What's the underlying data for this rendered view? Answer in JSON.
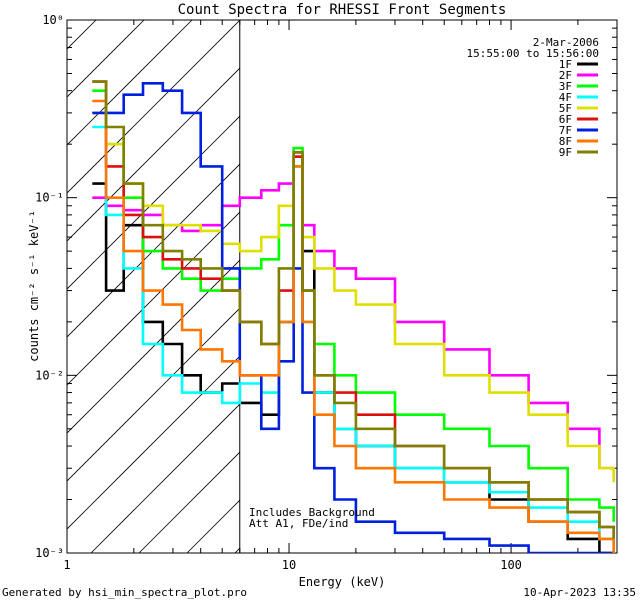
{
  "chart_data": {
    "type": "line",
    "title": "Count Spectra for RHESSI Front Segments",
    "xlabel": "Energy (keV)",
    "ylabel": "counts cm⁻² s⁻¹ keV⁻¹",
    "xscale": "log",
    "yscale": "log",
    "xlim": [
      1,
      300
    ],
    "ylim": [
      0.001,
      1
    ],
    "x_ticks": [
      {
        "value": 1,
        "label": "1"
      },
      {
        "value": 10,
        "label": "10"
      },
      {
        "value": 100,
        "label": "100"
      }
    ],
    "y_ticks": [
      {
        "value": 1,
        "label": "10⁰"
      },
      {
        "value": 0.1,
        "label": "10⁻¹"
      },
      {
        "value": 0.01,
        "label": "10⁻²"
      },
      {
        "value": 0.001,
        "label": "10⁻³"
      }
    ],
    "hatched_region_keV": [
      1,
      6
    ],
    "date": "2-Mar-2006",
    "time_range": "15:55:00 to 15:56:00",
    "annotations": [
      "Includes Background",
      "Att A1, FDe/ind"
    ],
    "series": [
      {
        "name": "1F",
        "color": "#000000",
        "x": [
          1.3,
          1.5,
          1.8,
          2.2,
          2.7,
          3.3,
          4.0,
          5.0,
          6.0,
          7.5,
          9.0,
          10.5,
          11.5,
          13,
          16,
          20,
          30,
          50,
          80,
          120,
          180,
          250,
          290
        ],
        "y": [
          0.12,
          0.03,
          0.07,
          0.02,
          0.015,
          0.01,
          0.008,
          0.009,
          0.007,
          0.006,
          0.02,
          0.18,
          0.05,
          0.008,
          0.005,
          0.004,
          0.003,
          0.0025,
          0.002,
          0.0015,
          0.0012,
          0.001,
          0.001
        ]
      },
      {
        "name": "2F",
        "color": "#ff00ff",
        "x": [
          1.3,
          1.5,
          1.8,
          2.2,
          2.7,
          3.3,
          4.0,
          5.0,
          6.0,
          7.5,
          9.0,
          10.5,
          11.5,
          13,
          16,
          20,
          30,
          50,
          80,
          120,
          180,
          250,
          290
        ],
        "y": [
          0.1,
          0.09,
          0.085,
          0.08,
          0.07,
          0.065,
          0.07,
          0.09,
          0.1,
          0.11,
          0.12,
          0.17,
          0.07,
          0.05,
          0.04,
          0.035,
          0.02,
          0.014,
          0.01,
          0.007,
          0.005,
          0.003,
          0.0028
        ]
      },
      {
        "name": "3F",
        "color": "#00ff00",
        "x": [
          1.3,
          1.5,
          1.8,
          2.2,
          2.7,
          3.3,
          4.0,
          5.0,
          6.0,
          7.5,
          9.0,
          10.5,
          11.5,
          13,
          16,
          20,
          30,
          50,
          80,
          120,
          180,
          250,
          290
        ],
        "y": [
          0.4,
          0.2,
          0.1,
          0.05,
          0.04,
          0.035,
          0.03,
          0.035,
          0.04,
          0.045,
          0.07,
          0.19,
          0.03,
          0.015,
          0.01,
          0.008,
          0.006,
          0.005,
          0.004,
          0.003,
          0.002,
          0.0018,
          0.0015
        ]
      },
      {
        "name": "4F",
        "color": "#00ffff",
        "x": [
          1.3,
          1.5,
          1.8,
          2.2,
          2.7,
          3.3,
          4.0,
          5.0,
          6.0,
          7.5,
          9.0,
          10.5,
          11.5,
          13,
          16,
          20,
          30,
          50,
          80,
          120,
          180,
          250,
          290
        ],
        "y": [
          0.25,
          0.08,
          0.04,
          0.015,
          0.01,
          0.008,
          0.008,
          0.007,
          0.009,
          0.008,
          0.02,
          0.15,
          0.02,
          0.008,
          0.005,
          0.004,
          0.003,
          0.0025,
          0.0022,
          0.0018,
          0.0015,
          0.0012,
          0.001
        ]
      },
      {
        "name": "5F",
        "color": "#e0e000",
        "x": [
          1.3,
          1.5,
          1.8,
          2.2,
          2.7,
          3.3,
          4.0,
          5.0,
          6.0,
          7.5,
          9.0,
          10.5,
          11.5,
          13,
          16,
          20,
          30,
          50,
          80,
          120,
          180,
          250,
          290
        ],
        "y": [
          0.3,
          0.2,
          0.12,
          0.09,
          0.07,
          0.07,
          0.065,
          0.055,
          0.05,
          0.06,
          0.09,
          0.18,
          0.06,
          0.04,
          0.03,
          0.025,
          0.015,
          0.01,
          0.008,
          0.006,
          0.004,
          0.003,
          0.0025
        ]
      },
      {
        "name": "6F",
        "color": "#dd1010",
        "x": [
          1.3,
          1.5,
          1.8,
          2.2,
          2.7,
          3.3,
          4.0,
          5.0,
          6.0,
          7.5,
          9.0,
          10.5,
          11.5,
          13,
          16,
          20,
          30,
          50,
          80,
          120,
          180,
          250,
          290
        ],
        "y": [
          0.45,
          0.15,
          0.08,
          0.06,
          0.045,
          0.04,
          0.035,
          0.03,
          0.02,
          0.015,
          0.03,
          0.17,
          0.03,
          0.01,
          0.008,
          0.006,
          0.004,
          0.003,
          0.0025,
          0.002,
          0.0017,
          0.0014,
          0.0012
        ]
      },
      {
        "name": "7F",
        "color": "#0020dd",
        "x": [
          1.3,
          1.5,
          1.8,
          2.2,
          2.7,
          3.3,
          4.0,
          5.0,
          6.0,
          7.5,
          9.0,
          10.5,
          11.5,
          13,
          16,
          20,
          30,
          50,
          80,
          120,
          180,
          250,
          290
        ],
        "y": [
          0.3,
          0.3,
          0.38,
          0.44,
          0.4,
          0.3,
          0.15,
          0.04,
          0.01,
          0.005,
          0.012,
          0.04,
          0.008,
          0.003,
          0.002,
          0.0015,
          0.0013,
          0.0012,
          0.0011,
          0.001,
          0.001,
          0.001,
          0.001
        ]
      },
      {
        "name": "8F",
        "color": "#ff7700",
        "x": [
          1.3,
          1.5,
          1.8,
          2.2,
          2.7,
          3.3,
          4.0,
          5.0,
          6.0,
          7.5,
          9.0,
          10.5,
          11.5,
          13,
          16,
          20,
          30,
          50,
          80,
          120,
          180,
          250,
          290
        ],
        "y": [
          0.35,
          0.1,
          0.05,
          0.03,
          0.025,
          0.018,
          0.014,
          0.012,
          0.01,
          0.01,
          0.02,
          0.15,
          0.02,
          0.006,
          0.004,
          0.003,
          0.0025,
          0.002,
          0.0018,
          0.0015,
          0.0013,
          0.0012,
          0.001
        ]
      },
      {
        "name": "9F",
        "color": "#808000",
        "x": [
          1.3,
          1.5,
          1.8,
          2.2,
          2.7,
          3.3,
          4.0,
          5.0,
          6.0,
          7.5,
          9.0,
          10.5,
          11.5,
          13,
          16,
          20,
          30,
          50,
          80,
          120,
          180,
          250,
          290
        ],
        "y": [
          0.45,
          0.25,
          0.12,
          0.07,
          0.05,
          0.045,
          0.04,
          0.03,
          0.02,
          0.015,
          0.04,
          0.18,
          0.03,
          0.01,
          0.007,
          0.005,
          0.004,
          0.003,
          0.0025,
          0.002,
          0.0017,
          0.0014,
          0.0012
        ]
      }
    ]
  },
  "footer": {
    "generated_by": "Generated by hsi_min_spectra_plot.pro",
    "timestamp": "10-Apr-2023 13:35"
  }
}
